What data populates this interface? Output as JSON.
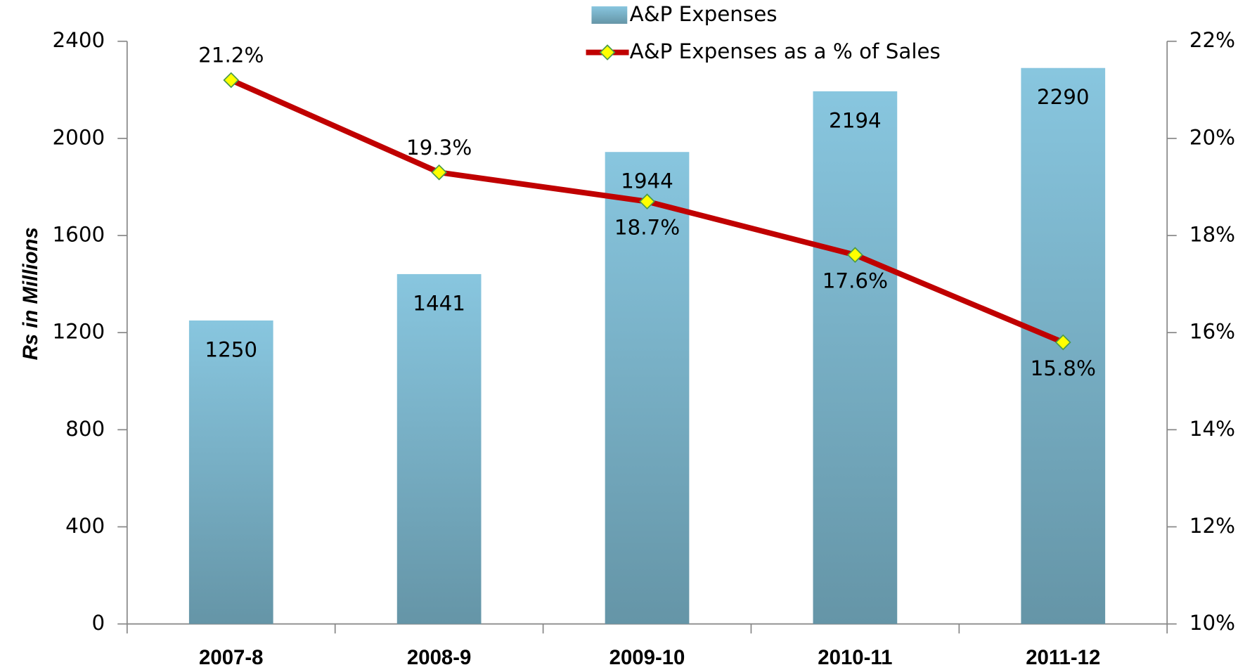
{
  "chart_data": {
    "type": "bar",
    "y_label": "Rs in Millions",
    "categories": [
      "2007-8",
      "2008-9",
      "2009-10",
      "2010-11",
      "2011-12"
    ],
    "series": [
      {
        "name": "A&P Expenses",
        "type": "bar",
        "color": "#7fbcd4",
        "values": [
          1250,
          1441,
          1944,
          2194,
          2290
        ]
      },
      {
        "name": "A&P Expenses as a % of Sales",
        "type": "line",
        "axis": "y2",
        "color": "#c00000",
        "marker_color": "#ffff00",
        "values": [
          21.2,
          19.3,
          18.7,
          17.6,
          15.8
        ],
        "value_labels": [
          "21.2%",
          "19.3%",
          "18.7%",
          "17.6%",
          "15.8%"
        ]
      }
    ],
    "ylim": [
      0,
      2400
    ],
    "yticks": [
      0,
      400,
      800,
      1200,
      1600,
      2000,
      2400
    ],
    "y2lim": [
      10,
      22
    ],
    "y2ticks": [
      {
        "value": 10,
        "label": "10%"
      },
      {
        "value": 12,
        "label": "12%"
      },
      {
        "value": 14,
        "label": "14%"
      },
      {
        "value": 16,
        "label": "16%"
      },
      {
        "value": 18,
        "label": "18%"
      },
      {
        "value": 20,
        "label": "20%"
      },
      {
        "value": 22,
        "label": "22%"
      }
    ],
    "legend": "top"
  }
}
